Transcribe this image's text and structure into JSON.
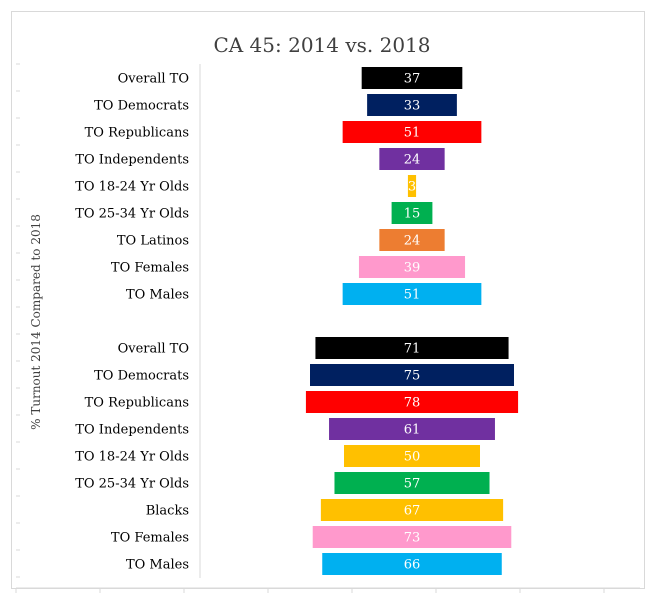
{
  "chart_data": {
    "type": "bar",
    "orientation": "horizontal",
    "layout": "centered",
    "title": "CA 45: 2014 vs. 2018",
    "ylabel": "% Turnout 2014 Compared to 2018",
    "xlabel": "",
    "groups": [
      {
        "bars": [
          {
            "label": "Overall TO",
            "value": 37,
            "color": "#000000"
          },
          {
            "label": "TO Democrats",
            "value": 33,
            "color": "#002060"
          },
          {
            "label": "TO Republicans",
            "value": 51,
            "color": "#ff0000"
          },
          {
            "label": "TO Independents",
            "value": 24,
            "color": "#7030a0"
          },
          {
            "label": "TO 18-24 Yr Olds",
            "value": 3,
            "color": "#ffc000"
          },
          {
            "label": "TO 25-34 Yr Olds",
            "value": 15,
            "color": "#00b050"
          },
          {
            "label": "TO Latinos",
            "value": 24,
            "color": "#ed7d31"
          },
          {
            "label": "TO Females",
            "value": 39,
            "color": "#ff99cc"
          },
          {
            "label": "TO Males",
            "value": 51,
            "color": "#00b0f0"
          }
        ]
      },
      {
        "bars": [
          {
            "label": "Overall TO",
            "value": 71,
            "color": "#000000"
          },
          {
            "label": "TO Democrats",
            "value": 75,
            "color": "#002060"
          },
          {
            "label": "TO Republicans",
            "value": 78,
            "color": "#ff0000"
          },
          {
            "label": "TO Independents",
            "value": 61,
            "color": "#7030a0"
          },
          {
            "label": "TO 18-24 Yr Olds",
            "value": 50,
            "color": "#ffc000"
          },
          {
            "label": "TO 25-34 Yr Olds",
            "value": 57,
            "color": "#00b050"
          },
          {
            "label": "Blacks",
            "value": 67,
            "color": "#ffc000"
          },
          {
            "label": "TO Females",
            "value": 73,
            "color": "#ff99cc"
          },
          {
            "label": "TO  Males",
            "value": 66,
            "color": "#00b0f0"
          }
        ]
      }
    ],
    "grid": false,
    "legend": "none"
  }
}
